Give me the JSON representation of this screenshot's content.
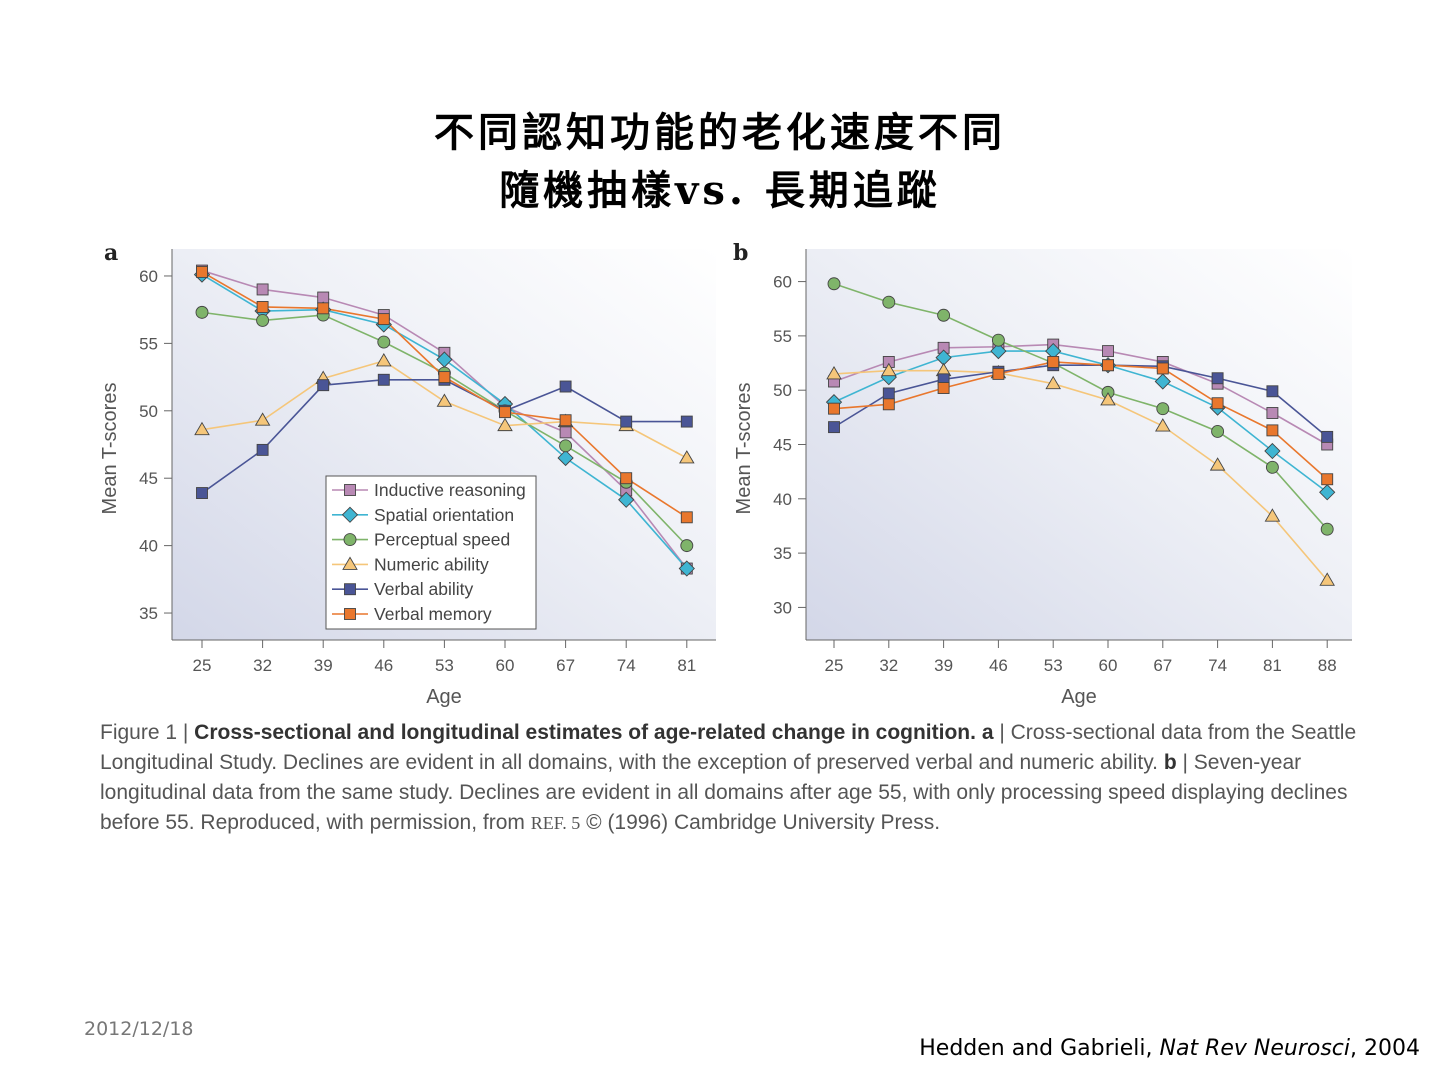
{
  "slide": {
    "title_line1": "不同認知功能的老化速度不同",
    "title_line2": "隨機抽樣vs. 長期追蹤",
    "date": "2012/12/18",
    "citation": {
      "authors": "Hedden and Gabrieli, ",
      "journal": "Nat Rev Neurosci",
      "year": ", 2004"
    }
  },
  "caption": {
    "prefix": "Figure 1 | ",
    "bold_title": "Cross-sectional and longitudinal estimates of age-related change in cognition.",
    "a_label": "a",
    "a_text": " | Cross-sectional data from the Seattle Longitudinal Study. Declines are evident in all domains, with the exception of preserved verbal and numeric ability. ",
    "b_label": "b",
    "b_text": " | Seven-year longitudinal data from the same study. Declines are evident in all domains after age 55, with only processing speed displaying declines before 55. Reproduced, with permission, from ",
    "ref": "REF. 5",
    "copyright": " © (1996) Cambridge University Press."
  },
  "colors": {
    "inductive": "#b889b4",
    "spatial": "#3fb5d2",
    "perceptual": "#7fb46a",
    "numeric": "#f5c67a",
    "verbal_ability": "#4a5596",
    "verbal_memory": "#e9772d"
  },
  "chart_data": [
    {
      "type": "line",
      "panel": "a",
      "xlabel": "Age",
      "ylabel": "Mean T-scores",
      "x": [
        25,
        32,
        39,
        46,
        53,
        60,
        67,
        74,
        81
      ],
      "ylim": [
        33,
        62
      ],
      "yticks": [
        35,
        40,
        45,
        50,
        55,
        60
      ],
      "legend_position": "bottom-center",
      "series": [
        {
          "key": "inductive",
          "name": "Inductive reasoning",
          "marker": "square",
          "values": [
            60.4,
            59.0,
            58.4,
            57.1,
            54.3,
            50.3,
            48.4,
            44.1,
            38.3
          ]
        },
        {
          "key": "spatial",
          "name": "Spatial orientation",
          "marker": "diamond",
          "values": [
            60.1,
            57.4,
            57.5,
            56.4,
            53.8,
            50.5,
            46.5,
            43.4,
            38.3
          ]
        },
        {
          "key": "perceptual",
          "name": "Perceptual speed",
          "marker": "circle",
          "values": [
            57.3,
            56.7,
            57.1,
            55.1,
            52.8,
            50.0,
            47.4,
            44.7,
            40.0
          ]
        },
        {
          "key": "numeric",
          "name": "Numeric ability",
          "marker": "triangle",
          "values": [
            48.6,
            49.3,
            52.4,
            53.7,
            50.7,
            48.9,
            49.2,
            48.9,
            46.5
          ]
        },
        {
          "key": "verbal_ability",
          "name": "Verbal ability",
          "marker": "square",
          "values": [
            43.9,
            47.1,
            51.9,
            52.3,
            52.3,
            50.0,
            51.8,
            49.2,
            49.2
          ]
        },
        {
          "key": "verbal_memory",
          "name": "Verbal memory",
          "marker": "square",
          "values": [
            60.3,
            57.7,
            57.6,
            56.8,
            52.5,
            49.9,
            49.3,
            45.0,
            42.1
          ]
        }
      ]
    },
    {
      "type": "line",
      "panel": "b",
      "xlabel": "Age",
      "ylabel": "Mean T-scores",
      "x": [
        25,
        32,
        39,
        46,
        53,
        60,
        67,
        74,
        81,
        88
      ],
      "ylim": [
        27,
        63
      ],
      "yticks": [
        30,
        35,
        40,
        45,
        50,
        55,
        60
      ],
      "series": [
        {
          "key": "inductive",
          "name": "Inductive reasoning",
          "marker": "square",
          "values": [
            50.8,
            52.6,
            53.9,
            54.0,
            54.2,
            53.6,
            52.6,
            50.6,
            47.9,
            45.0
          ]
        },
        {
          "key": "spatial",
          "name": "Spatial orientation",
          "marker": "diamond",
          "values": [
            48.9,
            51.2,
            53.0,
            53.6,
            53.6,
            52.3,
            50.8,
            48.4,
            44.4,
            40.6
          ]
        },
        {
          "key": "perceptual",
          "name": "Perceptual speed",
          "marker": "circle",
          "values": [
            59.8,
            58.1,
            56.9,
            54.6,
            52.5,
            49.8,
            48.3,
            46.2,
            42.9,
            37.2
          ]
        },
        {
          "key": "numeric",
          "name": "Numeric ability",
          "marker": "triangle",
          "values": [
            51.5,
            51.8,
            51.8,
            51.6,
            50.6,
            49.1,
            46.7,
            43.1,
            38.4,
            32.5
          ]
        },
        {
          "key": "verbal_ability",
          "name": "Verbal ability",
          "marker": "square",
          "values": [
            46.6,
            49.7,
            51.0,
            51.7,
            52.3,
            52.3,
            52.2,
            51.1,
            49.9,
            45.7
          ]
        },
        {
          "key": "verbal_memory",
          "name": "Verbal memory",
          "marker": "square",
          "values": [
            48.3,
            48.7,
            50.2,
            51.5,
            52.6,
            52.3,
            52.0,
            48.8,
            46.3,
            41.8
          ]
        }
      ]
    }
  ]
}
